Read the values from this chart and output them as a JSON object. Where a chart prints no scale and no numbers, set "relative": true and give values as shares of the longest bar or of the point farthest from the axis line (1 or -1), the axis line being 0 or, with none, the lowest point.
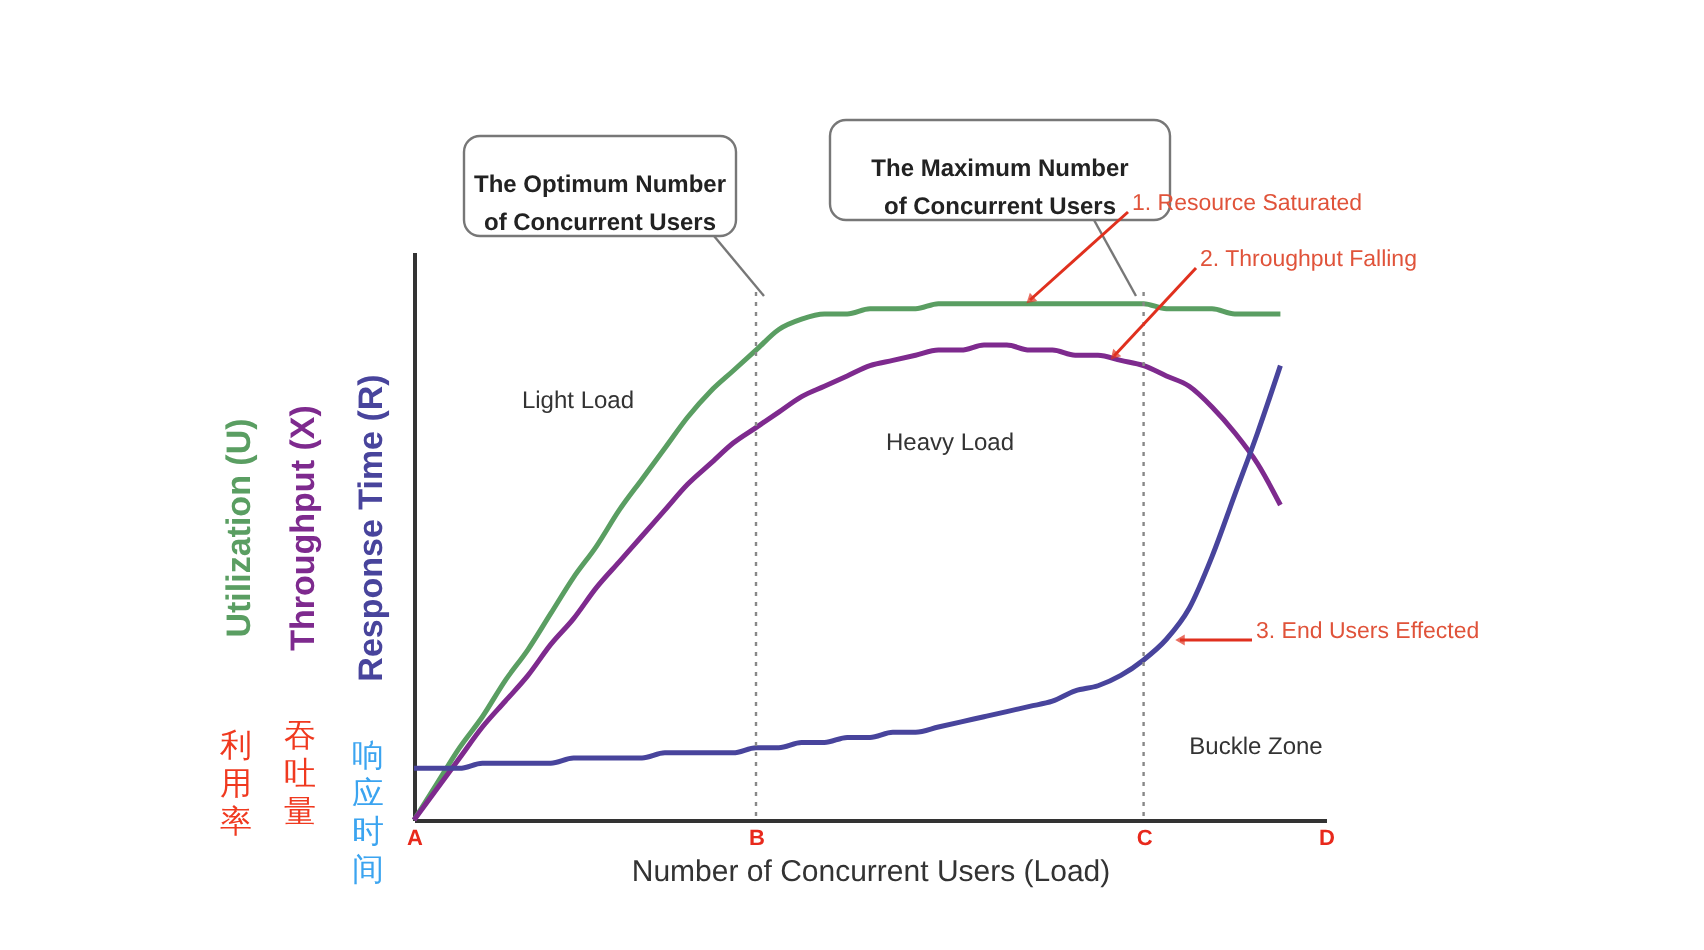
{
  "chart_data": {
    "type": "line",
    "relative": true,
    "xlabel": "Number of  Concurrent Users (Load)",
    "categories": [
      "A",
      null,
      null,
      null,
      null,
      null,
      null,
      null,
      null,
      null,
      null,
      null,
      null,
      null,
      null,
      "B",
      null,
      null,
      null,
      null,
      null,
      null,
      null,
      null,
      null,
      null,
      null,
      null,
      null,
      null,
      null,
      null,
      "C",
      null,
      null,
      null,
      null,
      null,
      null,
      null,
      "D"
    ],
    "series": [
      {
        "name": "Utilization (U)",
        "color": "#5a9e62",
        "values": [
          0,
          0.07,
          0.14,
          0.2,
          0.27,
          0.33,
          0.4,
          0.47,
          0.53,
          0.6,
          0.66,
          0.72,
          0.78,
          0.83,
          0.87,
          0.91,
          0.95,
          0.97,
          0.98,
          0.98,
          0.99,
          0.99,
          0.99,
          1,
          1,
          1,
          1,
          1,
          1,
          1,
          1,
          1,
          1,
          0.99,
          0.99,
          0.99,
          0.98,
          0.98,
          0.98,
          null,
          null
        ]
      },
      {
        "name": "Throughput (X)",
        "color": "#7e2a8e",
        "values": [
          0,
          0.06,
          0.12,
          0.18,
          0.23,
          0.28,
          0.34,
          0.39,
          0.45,
          0.5,
          0.55,
          0.6,
          0.65,
          0.69,
          0.73,
          0.76,
          0.79,
          0.82,
          0.84,
          0.86,
          0.88,
          0.89,
          0.9,
          0.91,
          0.91,
          0.92,
          0.92,
          0.91,
          0.91,
          0.9,
          0.9,
          0.89,
          0.88,
          0.86,
          0.84,
          0.8,
          0.75,
          0.69,
          0.61,
          null,
          null
        ]
      },
      {
        "name": "Response Time (R)",
        "color": "#48449c",
        "values": [
          0.1,
          0.1,
          0.1,
          0.11,
          0.11,
          0.11,
          0.11,
          0.12,
          0.12,
          0.12,
          0.12,
          0.13,
          0.13,
          0.13,
          0.13,
          0.14,
          0.14,
          0.15,
          0.15,
          0.16,
          0.16,
          0.17,
          0.17,
          0.18,
          0.19,
          0.2,
          0.21,
          0.22,
          0.23,
          0.25,
          0.26,
          0.28,
          0.31,
          0.35,
          0.41,
          0.51,
          0.63,
          0.75,
          0.88,
          null,
          null
        ]
      }
    ],
    "ref_lines": [
      {
        "axis": "x",
        "value": "B",
        "line_style": "dotted",
        "color": "#888888"
      },
      {
        "axis": "x",
        "value": "C",
        "line_style": "dotted",
        "color": "#888888"
      }
    ],
    "annotations": [
      "The Optimum Number of Concurrent Users",
      "The Maximum Number of Concurrent Users",
      "1. Resource Saturated",
      "2. Throughput Falling",
      "3. End Users Effected",
      "Light Load",
      "Heavy Load",
      "Buckle Zone",
      "利用率",
      "吞吐量",
      "响应时间"
    ],
    "grid": false,
    "legend": false,
    "line_style": "solid",
    "marker": "none"
  }
}
